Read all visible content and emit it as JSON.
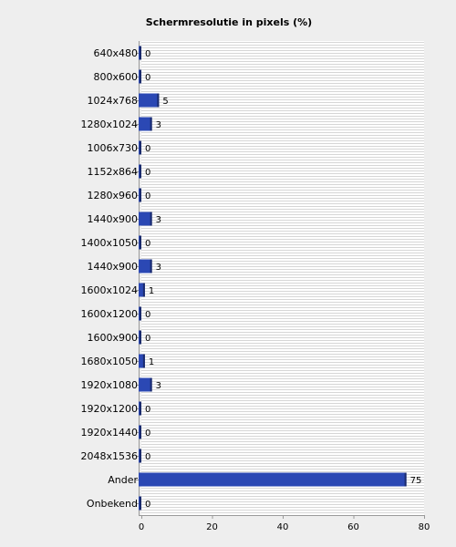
{
  "chart_data": {
    "type": "bar",
    "orientation": "horizontal",
    "title": "Schermresolutie in pixels (%)",
    "xlabel": "",
    "ylabel": "",
    "categories": [
      "640x480",
      "800x600",
      "1024x768",
      "1280x1024",
      "1006x730",
      "1152x864",
      "1280x960",
      "1440x900",
      "1400x1050",
      "1440x900",
      "1600x1024",
      "1600x1200",
      "1600x900",
      "1680x1050",
      "1920x1080",
      "1920x1200",
      "1920x1440",
      "2048x1536",
      "Ander",
      "Onbekend"
    ],
    "values": [
      0,
      0,
      5,
      3,
      0,
      0,
      0,
      3,
      0,
      3,
      1,
      0,
      0,
      1,
      3,
      0,
      0,
      0,
      75,
      0
    ],
    "xlim": [
      0,
      80
    ],
    "xticks": [
      0,
      20,
      40,
      60,
      80
    ],
    "grid": true,
    "bar_color": "#2b48b4"
  }
}
